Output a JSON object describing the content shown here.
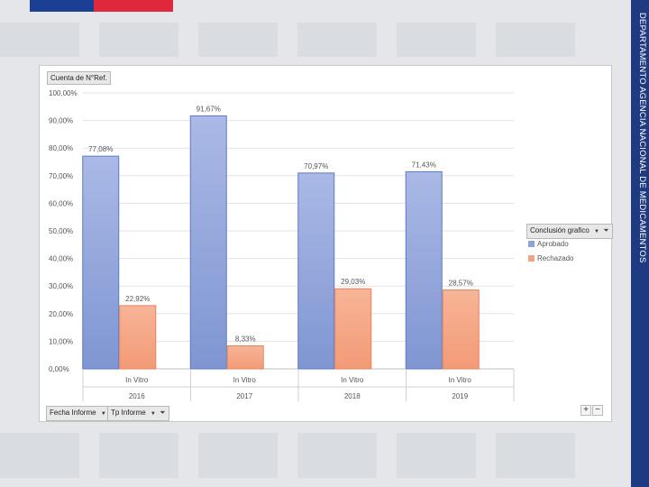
{
  "header": {
    "side_title": "DEPARTAMENTO AGENCIA NACIONAL DE MEDICAMENTOS"
  },
  "pivot": {
    "value_field": "Cuenta de N°Ref.",
    "legend_field": "Conclusión grafico",
    "axis_fields": [
      "Fecha Informe",
      "Tp Informe"
    ],
    "zoom_in": "+",
    "zoom_out": "−"
  },
  "colors": {
    "aprobado": "#8ea3d9",
    "rechazado": "#f4a27f",
    "brand_blue": "#1b3f93",
    "brand_red": "#e0283c"
  },
  "chart_data": {
    "type": "bar",
    "categories": [
      {
        "group": "2016",
        "label": "In Vitro"
      },
      {
        "group": "2017",
        "label": "In Vitro"
      },
      {
        "group": "2018",
        "label": "In Vitro"
      },
      {
        "group": "2019",
        "label": "In Vitro"
      }
    ],
    "series": [
      {
        "name": "Aprobado",
        "values": [
          77.08,
          91.67,
          70.97,
          71.43
        ],
        "labels": [
          "77,08%",
          "91,67%",
          "70,97%",
          "71,43%"
        ]
      },
      {
        "name": "Rechazado",
        "values": [
          22.92,
          8.33,
          29.03,
          28.57
        ],
        "labels": [
          "22,92%",
          "8,33%",
          "29,03%",
          "28,57%"
        ]
      }
    ],
    "ylim": [
      0,
      100
    ],
    "yticks": [
      "0,00%",
      "10,00%",
      "20,00%",
      "30,00%",
      "40,00%",
      "50,00%",
      "60,00%",
      "70,00%",
      "80,00%",
      "90,00%",
      "100,00%"
    ],
    "grid": true,
    "legend_position": "right"
  }
}
